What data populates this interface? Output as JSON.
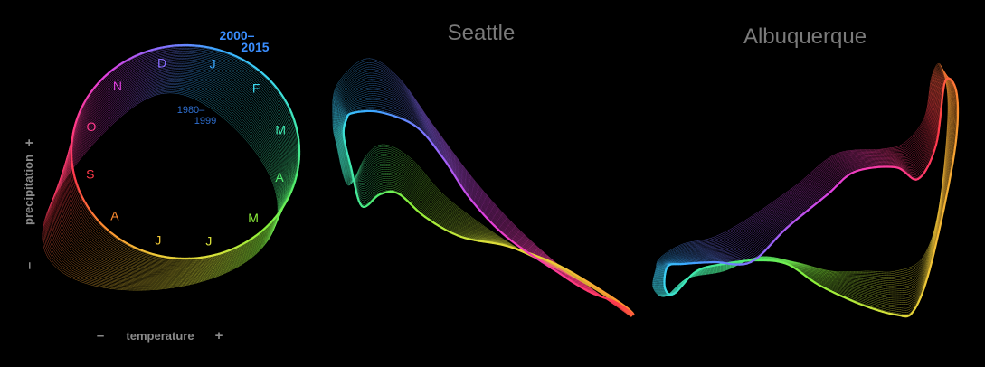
{
  "legend": {
    "era_new_line1": "2000–",
    "era_new_line2": "2015",
    "era_old_line1": "1980–",
    "era_old_line2": "1999",
    "months": [
      {
        "label": "J",
        "color": "#3aa8ff"
      },
      {
        "label": "F",
        "color": "#3cd8f0"
      },
      {
        "label": "M",
        "color": "#40e8b0"
      },
      {
        "label": "A",
        "color": "#50ee70"
      },
      {
        "label": "M",
        "color": "#8cf03a"
      },
      {
        "label": "J",
        "color": "#d8e03a"
      },
      {
        "label": "J",
        "color": "#f0c838"
      },
      {
        "label": "A",
        "color": "#ff8c30"
      },
      {
        "label": "S",
        "color": "#ff3a4a"
      },
      {
        "label": "O",
        "color": "#ff3a8c"
      },
      {
        "label": "N",
        "color": "#e040e0"
      },
      {
        "label": "D",
        "color": "#8a6cff"
      }
    ]
  },
  "axes": {
    "y_label": "precipitation",
    "y_minus": "–",
    "y_plus": "+",
    "x_label": "temperature",
    "x_minus": "–",
    "x_plus": "+"
  },
  "cities": [
    {
      "name": "Seattle"
    },
    {
      "name": "Albuquerque"
    }
  ]
}
